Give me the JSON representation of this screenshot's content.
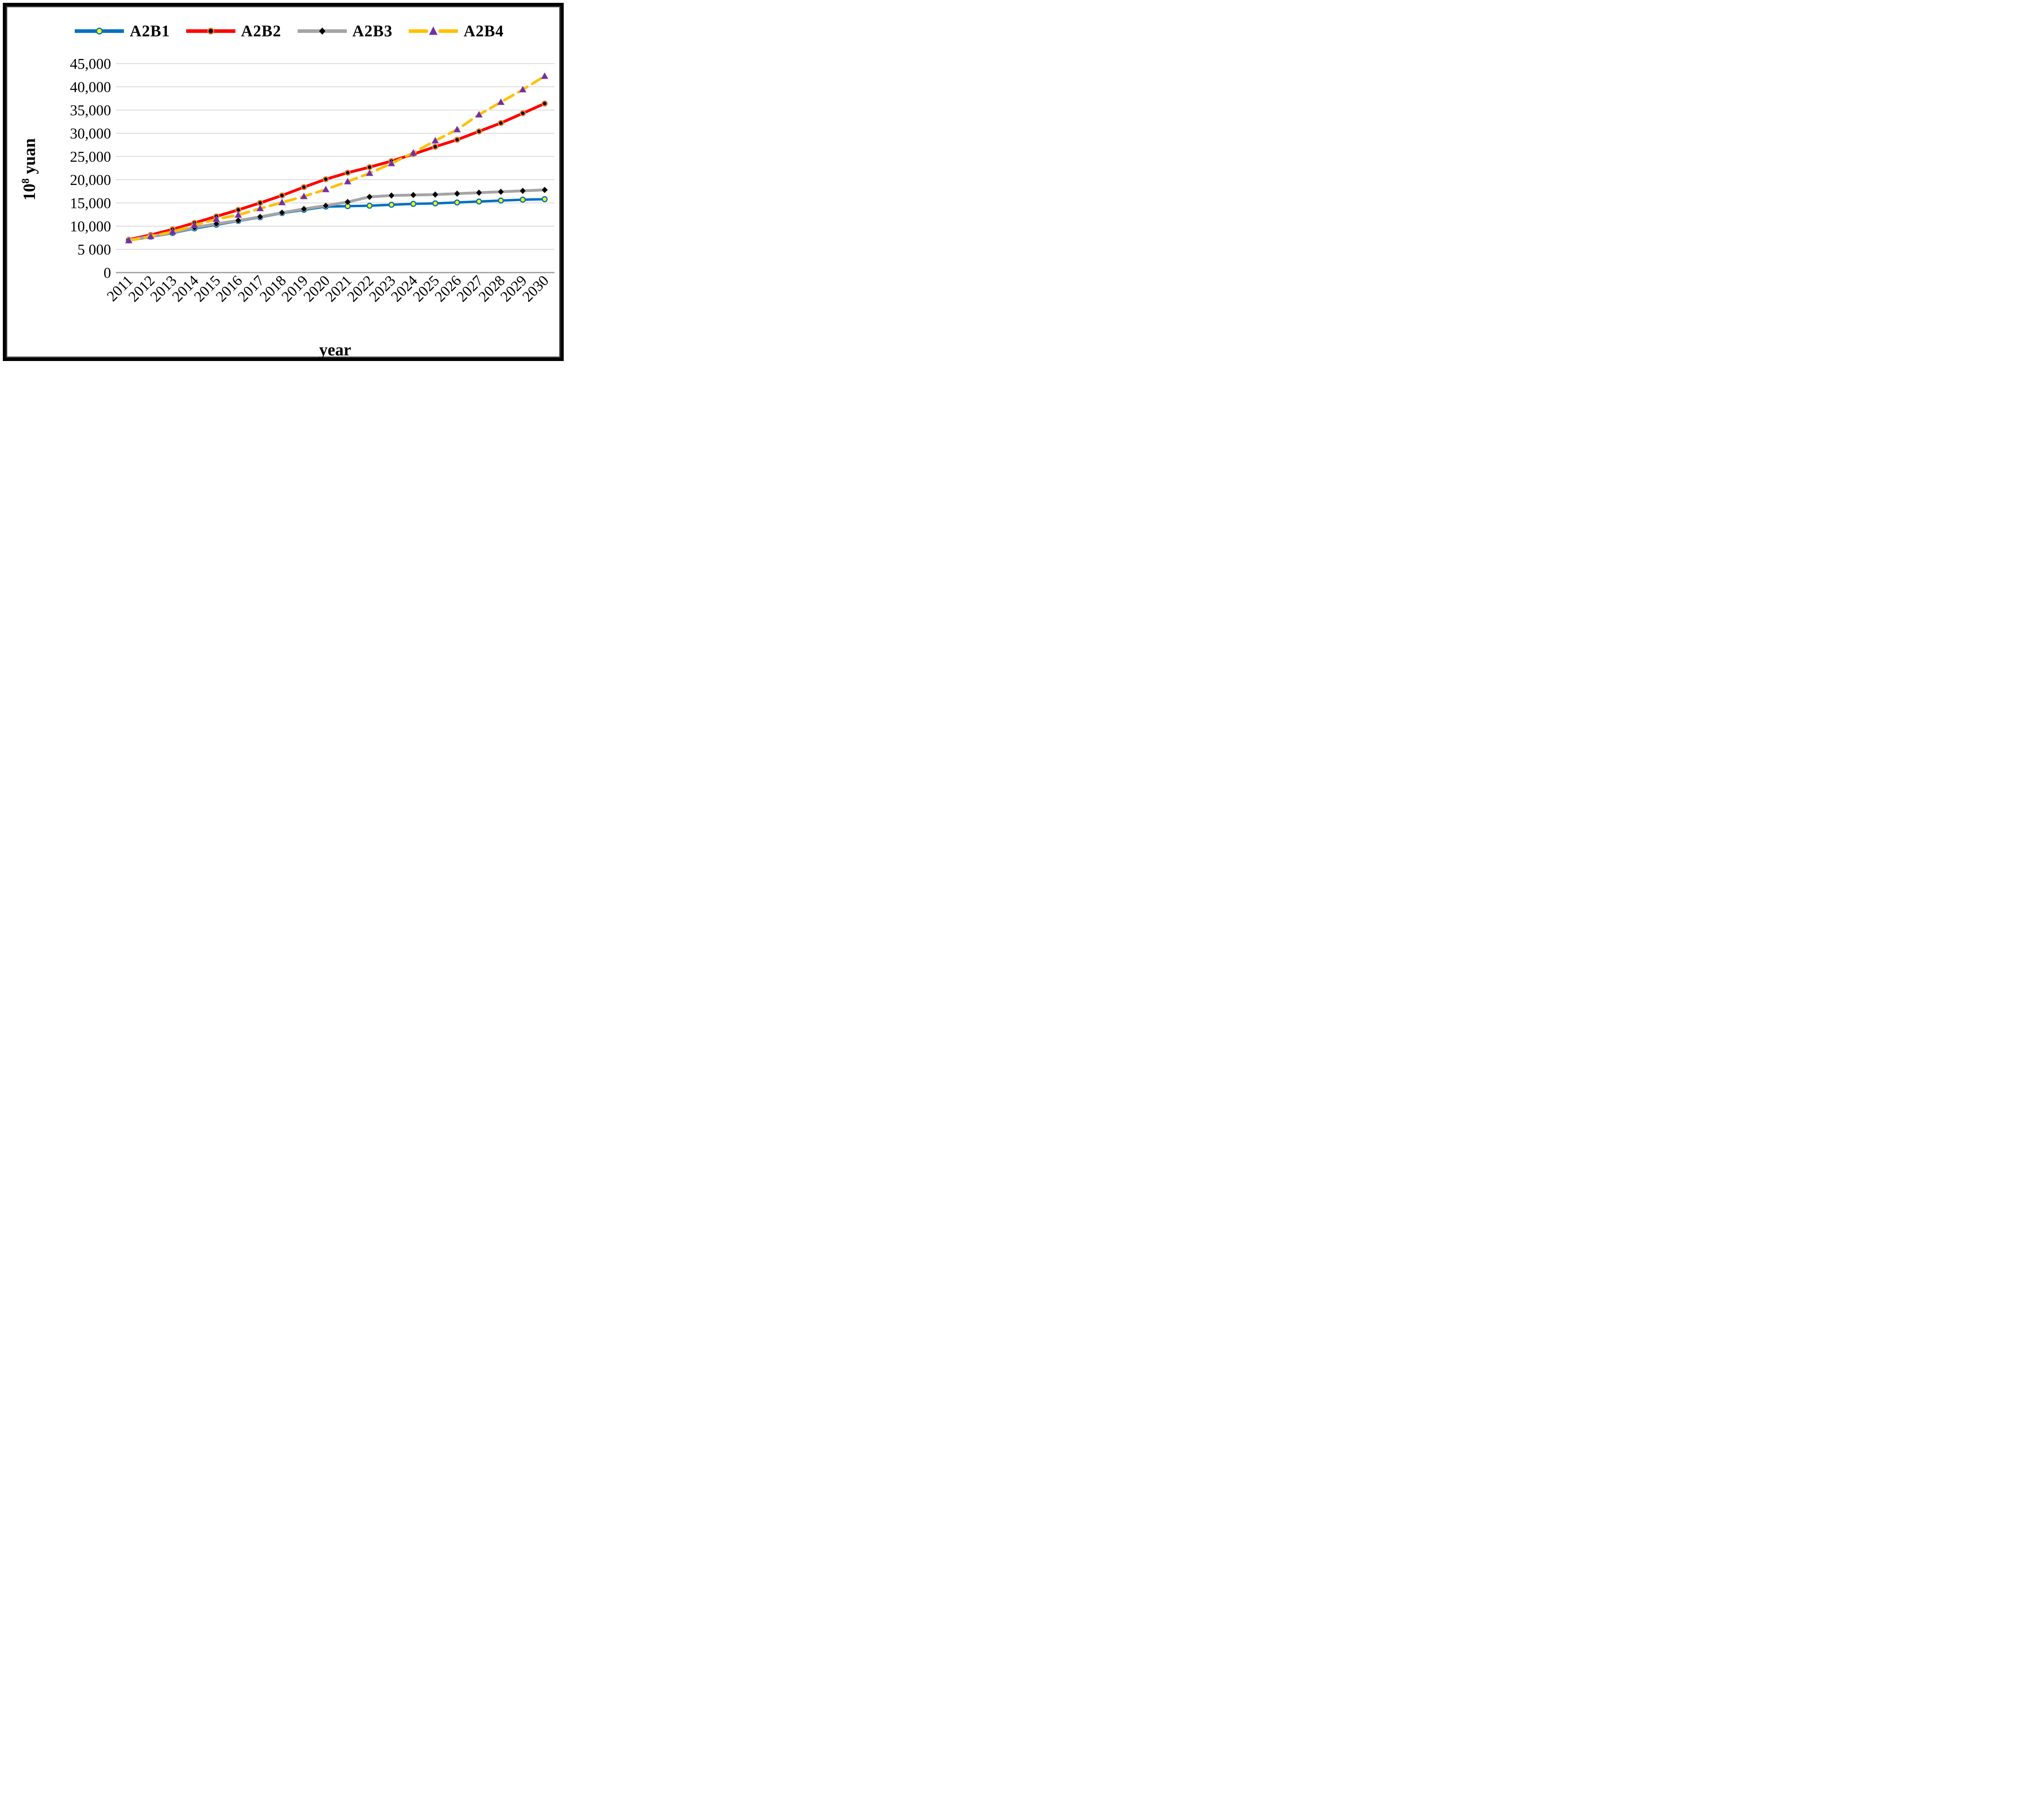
{
  "y_axis_title": {
    "base": "10",
    "sup": "8",
    "unit": " yuan"
  },
  "chart_data": {
    "type": "line",
    "title": "",
    "xlabel": "year",
    "ylabel": "10^8 yuan",
    "x": [
      2011,
      2012,
      2013,
      2014,
      2015,
      2016,
      2017,
      2018,
      2019,
      2020,
      2021,
      2022,
      2023,
      2024,
      2025,
      2026,
      2027,
      2028,
      2029,
      2030
    ],
    "ylim": [
      0,
      45000
    ],
    "ytick_interval": 5000,
    "ytick_labels": [
      "0",
      "5 000",
      "10,000",
      "15,000",
      "20,000",
      "25,000",
      "30,000",
      "35,000",
      "40,000",
      "45,000"
    ],
    "grid": true,
    "legend_position": "top",
    "colors": {
      "grid": "#D9D9D9",
      "axis": "#9B9B9B",
      "text": "#000000",
      "frame": "#000000"
    },
    "series": [
      {
        "name": "A2B1",
        "line_color": "#0070C0",
        "line_style": "solid",
        "marker": "circle",
        "marker_fill": "#FFFF00",
        "marker_edge": "#0070C0",
        "values": [
          6900,
          7700,
          8500,
          9500,
          10300,
          11100,
          11900,
          12800,
          13500,
          14200,
          14300,
          14400,
          14600,
          14800,
          14900,
          15100,
          15300,
          15500,
          15700,
          15800
        ]
      },
      {
        "name": "A2B2",
        "line_color": "#FF0000",
        "line_style": "solid",
        "marker": "circle",
        "marker_fill": "#0A0A0A",
        "marker_edge": "#ED7D31",
        "values": [
          7100,
          8100,
          9300,
          10700,
          12100,
          13500,
          15000,
          16600,
          18400,
          20100,
          21500,
          22700,
          24000,
          25500,
          27100,
          28600,
          30400,
          32200,
          34300,
          36400
        ]
      },
      {
        "name": "A2B3",
        "line_color": "#A5A5A5",
        "line_style": "solid",
        "marker": "diamond",
        "marker_fill": "#000000",
        "marker_edge": "#C8C8C8",
        "values": [
          7000,
          7800,
          8600,
          9700,
          10500,
          11200,
          12000,
          12900,
          13700,
          14400,
          15200,
          16300,
          16600,
          16700,
          16800,
          17000,
          17200,
          17400,
          17600,
          17800
        ]
      },
      {
        "name": "A2B4",
        "line_color": "#FFC000",
        "line_style": "dashed",
        "marker": "triangle",
        "marker_fill": "#7030A0",
        "marker_edge": "#9A5BBF",
        "values": [
          6900,
          7800,
          8800,
          10200,
          11500,
          12400,
          13800,
          15100,
          16400,
          17900,
          19600,
          21400,
          23500,
          25800,
          28400,
          30800,
          34000,
          36700,
          39400,
          42300
        ]
      }
    ]
  }
}
